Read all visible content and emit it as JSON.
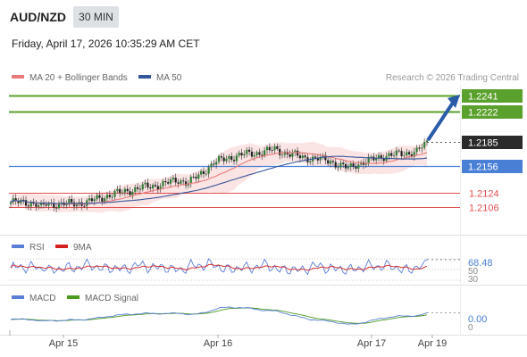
{
  "header": {
    "symbol": "AUD/NZD",
    "timeframe": "30 MIN",
    "datetime": "Friday, April 17, 2026 10:35:29 AM CET"
  },
  "legend": {
    "ma20": "MA 20 + Bollinger Bands",
    "ma50": "MA 50",
    "credit": "Research © 2026 Trading Central"
  },
  "colors": {
    "resistance": "#5aa02c",
    "pivot": "#4a7fd6",
    "support": "#e05050",
    "ma20": "#e87a7a",
    "ma50": "#34569a",
    "candle": "#2e7d32",
    "arrow": "#2a5ca8",
    "band_fill": "#fbe1e1",
    "rsi": "#5b7fd6",
    "rsi_ma": "#d62020",
    "macd": "#5b7fd6",
    "macd_signal": "#4a9a1e",
    "current_price_box": "#2b2b2b"
  },
  "chart_data": [
    {
      "type": "candlestick",
      "ylim": [
        1.2074,
        1.2254
      ],
      "x_ticks": [
        "Apr 15",
        "Apr 16",
        "Apr 17",
        "Apr 19"
      ],
      "levels": [
        {
          "label": "1.2241",
          "value": 1.2241,
          "kind": "resistance"
        },
        {
          "label": "1.2222",
          "value": 1.2222,
          "kind": "resistance"
        },
        {
          "label": "1.2185",
          "value": 1.2185,
          "kind": "current"
        },
        {
          "label": "1.2156",
          "value": 1.2156,
          "kind": "pivot"
        },
        {
          "label": "1.2124",
          "value": 1.2124,
          "kind": "support"
        },
        {
          "label": "1.2106",
          "value": 1.2106,
          "kind": "support"
        }
      ],
      "anchors": [
        [
          0,
          1.2112
        ],
        [
          6,
          1.2112
        ],
        [
          10,
          1.211
        ],
        [
          12,
          1.2105
        ],
        [
          14,
          1.211
        ],
        [
          22,
          1.211
        ],
        [
          30,
          1.2112
        ],
        [
          38,
          1.212
        ],
        [
          46,
          1.2126
        ],
        [
          52,
          1.213
        ],
        [
          60,
          1.2134
        ],
        [
          66,
          1.2139
        ],
        [
          70,
          1.2136
        ],
        [
          74,
          1.2144
        ],
        [
          80,
          1.216
        ],
        [
          86,
          1.2166
        ],
        [
          92,
          1.217
        ],
        [
          98,
          1.2172
        ],
        [
          104,
          1.2176
        ],
        [
          110,
          1.217
        ],
        [
          116,
          1.2166
        ],
        [
          122,
          1.2164
        ],
        [
          126,
          1.2162
        ],
        [
          130,
          1.2156
        ],
        [
          133,
          1.2153
        ],
        [
          136,
          1.2158
        ],
        [
          142,
          1.2163
        ],
        [
          148,
          1.2169
        ],
        [
          154,
          1.217
        ],
        [
          160,
          1.2174
        ],
        [
          164,
          1.2183
        ]
      ],
      "candle_count": 165,
      "ma20_end": 1.2174,
      "ma50_end": 1.217,
      "forecast_target": 1.2241
    },
    {
      "type": "line",
      "name": "RSI",
      "ma_name": "9MA",
      "last": "68.48",
      "ticks": [
        "70",
        "50",
        "30"
      ],
      "ylim": [
        20,
        80
      ]
    },
    {
      "type": "line",
      "name": "MACD",
      "signal_name": "MACD Signal",
      "last": "0.00",
      "ticks": [
        "0"
      ]
    }
  ]
}
